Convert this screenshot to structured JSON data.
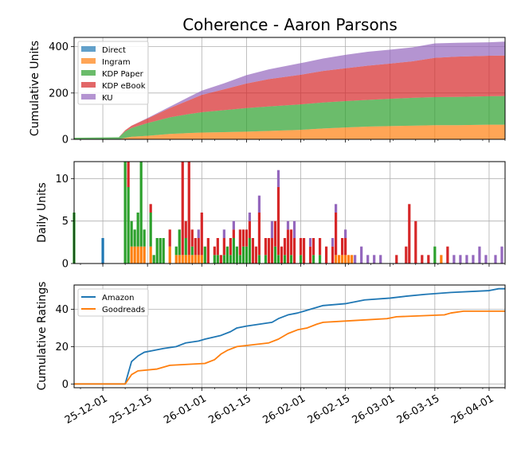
{
  "figure": {
    "title": "Coherence - Aaron Parsons",
    "x_tick_labels": [
      "25-12-01",
      "25-12-15",
      "26-01-01",
      "26-01-15",
      "26-02-01",
      "26-02-15",
      "26-03-01",
      "26-03-15",
      "26-04-01"
    ]
  },
  "colors": {
    "Direct": "#1f77b4",
    "Ingram": "#ff7f0e",
    "KDP Paper": "#2ca02c",
    "KDP eBook": "#d62728",
    "KU": "#9467bd",
    "Amazon": "#1f77b4",
    "Goodreads": "#ff7f0e"
  },
  "chart_data": [
    {
      "type": "area",
      "stacked": true,
      "ylabel": "Cumulative Units",
      "xlim": [
        "2025-11-22",
        "2026-04-06"
      ],
      "ylim": [
        0,
        440
      ],
      "yticks": [
        0,
        200,
        400
      ],
      "grid": true,
      "legend": "upper-left",
      "x": [
        "2025-11-22",
        "2025-12-01",
        "2025-12-06",
        "2025-12-08",
        "2025-12-10",
        "2025-12-15",
        "2025-12-22",
        "2025-12-28",
        "2026-01-01",
        "2026-01-08",
        "2026-01-15",
        "2026-01-22",
        "2026-02-01",
        "2026-02-08",
        "2026-02-15",
        "2026-02-22",
        "2026-03-01",
        "2026-03-08",
        "2026-03-15",
        "2026-03-22",
        "2026-04-01",
        "2026-04-06"
      ],
      "series": [
        {
          "name": "Direct",
          "values": [
            0,
            1,
            1,
            1,
            1,
            1,
            1,
            1,
            1,
            1,
            1,
            1,
            1,
            1,
            1,
            1,
            1,
            1,
            1,
            1,
            1,
            1
          ]
        },
        {
          "name": "Ingram",
          "values": [
            0,
            0,
            0,
            5,
            10,
            14,
            22,
            26,
            28,
            30,
            32,
            35,
            40,
            46,
            50,
            54,
            56,
            58,
            60,
            60,
            62,
            62
          ]
        },
        {
          "name": "KDP Paper",
          "values": [
            7,
            7,
            8,
            28,
            38,
            55,
            72,
            82,
            88,
            95,
            102,
            106,
            110,
            112,
            114,
            115,
            118,
            120,
            121,
            122,
            123,
            124
          ]
        },
        {
          "name": "KDP eBook",
          "values": [
            0,
            0,
            0,
            5,
            10,
            20,
            40,
            60,
            75,
            90,
            106,
            118,
            128,
            136,
            142,
            148,
            152,
            158,
            170,
            174,
            175,
            175
          ]
        },
        {
          "name": "KU",
          "values": [
            0,
            0,
            0,
            0,
            0,
            2,
            6,
            14,
            18,
            26,
            36,
            42,
            50,
            54,
            58,
            60,
            60,
            60,
            62,
            60,
            58,
            60
          ]
        }
      ]
    },
    {
      "type": "bar",
      "stacked": true,
      "ylabel": "Daily Units",
      "ylim": [
        0,
        12
      ],
      "yticks": [
        0,
        5,
        10
      ],
      "grid": true,
      "series_order": [
        "Direct",
        "Ingram",
        "KDP Paper",
        "KDP eBook",
        "KU"
      ],
      "bars": [
        {
          "date": "2025-11-22",
          "KDP Paper": 6
        },
        {
          "date": "2025-12-01",
          "Direct": 3
        },
        {
          "date": "2025-12-08",
          "KDP Paper": 12
        },
        {
          "date": "2025-12-09",
          "KDP Paper": 9,
          "KDP eBook": 3
        },
        {
          "date": "2025-12-10",
          "Ingram": 2,
          "KDP Paper": 3
        },
        {
          "date": "2025-12-11",
          "Ingram": 2,
          "KDP Paper": 2
        },
        {
          "date": "2025-12-12",
          "Ingram": 2,
          "KDP Paper": 4
        },
        {
          "date": "2025-12-13",
          "Ingram": 2,
          "KDP Paper": 10
        },
        {
          "date": "2025-12-14",
          "Ingram": 2,
          "KDP Paper": 2
        },
        {
          "date": "2025-12-16",
          "Ingram": 2,
          "KDP Paper": 4,
          "KDP eBook": 1
        },
        {
          "date": "2025-12-17",
          "KDP Paper": 1
        },
        {
          "date": "2025-12-18",
          "KDP Paper": 3
        },
        {
          "date": "2025-12-19",
          "KDP Paper": 3
        },
        {
          "date": "2025-12-20",
          "KDP Paper": 3
        },
        {
          "date": "2025-12-22",
          "Ingram": 2,
          "KDP eBook": 2
        },
        {
          "date": "2025-12-24",
          "Ingram": 1,
          "KDP Paper": 1
        },
        {
          "date": "2025-12-25",
          "Ingram": 1,
          "KDP Paper": 3
        },
        {
          "date": "2025-12-26",
          "Ingram": 1,
          "KDP eBook": 13
        },
        {
          "date": "2025-12-27",
          "Ingram": 1,
          "KDP Paper": 2,
          "KDP eBook": 2
        },
        {
          "date": "2025-12-28",
          "Ingram": 1,
          "KDP eBook": 11
        },
        {
          "date": "2025-12-29",
          "Ingram": 1,
          "KDP Paper": 1,
          "KDP eBook": 2
        },
        {
          "date": "2025-12-30",
          "Ingram": 1,
          "KDP eBook": 2
        },
        {
          "date": "2025-12-31",
          "Ingram": 1,
          "KDP eBook": 2,
          "KU": 1
        },
        {
          "date": "2026-01-01",
          "Ingram": 1,
          "KDP eBook": 5
        },
        {
          "date": "2026-01-02",
          "KDP Paper": 2
        },
        {
          "date": "2026-01-03",
          "KDP eBook": 3
        },
        {
          "date": "2026-01-05",
          "KDP Paper": 1,
          "KDP eBook": 1
        },
        {
          "date": "2026-01-06",
          "KDP Paper": 1,
          "KDP eBook": 2
        },
        {
          "date": "2026-01-07",
          "KDP eBook": 1
        },
        {
          "date": "2026-01-08",
          "KDP Paper": 1,
          "KDP eBook": 2,
          "KU": 1
        },
        {
          "date": "2026-01-09",
          "KDP Paper": 2
        },
        {
          "date": "2026-01-10",
          "KDP Paper": 1,
          "KDP eBook": 2
        },
        {
          "date": "2026-01-11",
          "KDP Paper": 3,
          "KDP eBook": 1,
          "KU": 1
        },
        {
          "date": "2026-01-12",
          "KDP Paper": 2
        },
        {
          "date": "2026-01-13",
          "KDP Paper": 1,
          "KDP eBook": 3
        },
        {
          "date": "2026-01-14",
          "KDP Paper": 2,
          "KDP eBook": 2
        },
        {
          "date": "2026-01-15",
          "KDP Paper": 2,
          "KDP eBook": 2
        },
        {
          "date": "2026-01-16",
          "KDP Paper": 3,
          "KDP eBook": 2,
          "KU": 1
        },
        {
          "date": "2026-01-17",
          "KDP eBook": 3
        },
        {
          "date": "2026-01-18",
          "KDP eBook": 2
        },
        {
          "date": "2026-01-19",
          "KDP Paper": 1,
          "KDP eBook": 5,
          "KU": 2
        },
        {
          "date": "2026-01-21",
          "KDP Paper": 1,
          "KDP eBook": 2
        },
        {
          "date": "2026-01-22",
          "KDP eBook": 3
        },
        {
          "date": "2026-01-23",
          "KDP eBook": 3,
          "KU": 2
        },
        {
          "date": "2026-01-24",
          "KDP Paper": 2,
          "KDP eBook": 3
        },
        {
          "date": "2026-01-25",
          "KDP Paper": 1,
          "KDP eBook": 8,
          "KU": 2
        },
        {
          "date": "2026-01-26",
          "KDP eBook": 2
        },
        {
          "date": "2026-01-27",
          "KDP Paper": 1,
          "KDP eBook": 2
        },
        {
          "date": "2026-01-28",
          "KDP eBook": 4,
          "KU": 1
        },
        {
          "date": "2026-01-29",
          "KDP Paper": 1,
          "KDP eBook": 3
        },
        {
          "date": "2026-01-30",
          "KDP eBook": 3,
          "KU": 2
        },
        {
          "date": "2026-02-01",
          "KDP Paper": 1,
          "KDP eBook": 2
        },
        {
          "date": "2026-02-02",
          "KDP eBook": 3
        },
        {
          "date": "2026-02-04",
          "KDP eBook": 2,
          "KU": 1
        },
        {
          "date": "2026-02-05",
          "KDP Paper": 1,
          "KDP eBook": 2
        },
        {
          "date": "2026-02-07",
          "KDP Paper": 1,
          "KDP eBook": 2
        },
        {
          "date": "2026-02-09",
          "KDP eBook": 2
        },
        {
          "date": "2026-02-11",
          "KDP eBook": 2,
          "KU": 1
        },
        {
          "date": "2026-02-12",
          "Ingram": 1,
          "KDP eBook": 5,
          "KU": 1
        },
        {
          "date": "2026-02-13",
          "Ingram": 1
        },
        {
          "date": "2026-02-14",
          "Ingram": 1,
          "KDP eBook": 2
        },
        {
          "date": "2026-02-15",
          "Ingram": 1,
          "KDP eBook": 2,
          "KU": 1
        },
        {
          "date": "2026-02-16",
          "Ingram": 1
        },
        {
          "date": "2026-02-17",
          "Ingram": 1
        },
        {
          "date": "2026-02-18",
          "KU": 1
        },
        {
          "date": "2026-02-20",
          "KU": 2
        },
        {
          "date": "2026-02-22",
          "KU": 1
        },
        {
          "date": "2026-02-24",
          "KU": 1
        },
        {
          "date": "2026-02-26",
          "KU": 1
        },
        {
          "date": "2026-03-03",
          "KDP eBook": 1
        },
        {
          "date": "2026-03-06",
          "KDP eBook": 2
        },
        {
          "date": "2026-03-07",
          "KDP eBook": 7
        },
        {
          "date": "2026-03-09",
          "KDP eBook": 5
        },
        {
          "date": "2026-03-11",
          "KDP eBook": 1
        },
        {
          "date": "2026-03-13",
          "KDP eBook": 1
        },
        {
          "date": "2026-03-15",
          "KDP Paper": 2
        },
        {
          "date": "2026-03-17",
          "Ingram": 1
        },
        {
          "date": "2026-03-19",
          "KDP eBook": 2
        },
        {
          "date": "2026-03-21",
          "KU": 1
        },
        {
          "date": "2026-03-23",
          "KU": 1
        },
        {
          "date": "2026-03-25",
          "KU": 1
        },
        {
          "date": "2026-03-27",
          "KU": 1
        },
        {
          "date": "2026-03-29",
          "KU": 2
        },
        {
          "date": "2026-03-31",
          "KU": 1
        },
        {
          "date": "2026-04-03",
          "KU": 1
        },
        {
          "date": "2026-04-05",
          "KU": 2
        }
      ]
    },
    {
      "type": "line",
      "ylabel": "Cumulative Ratings",
      "ylim": [
        -2,
        53
      ],
      "yticks": [
        0,
        20,
        40
      ],
      "grid": true,
      "legend": "upper-left",
      "series": [
        {
          "name": "Amazon",
          "points": [
            [
              "2025-11-22",
              0
            ],
            [
              "2025-12-08",
              0
            ],
            [
              "2025-12-10",
              12
            ],
            [
              "2025-12-12",
              15
            ],
            [
              "2025-12-14",
              17
            ],
            [
              "2025-12-17",
              18
            ],
            [
              "2025-12-20",
              19
            ],
            [
              "2025-12-24",
              20
            ],
            [
              "2025-12-27",
              22
            ],
            [
              "2025-12-31",
              23
            ],
            [
              "2026-01-02",
              24
            ],
            [
              "2026-01-07",
              26
            ],
            [
              "2026-01-10",
              28
            ],
            [
              "2026-01-12",
              30
            ],
            [
              "2026-01-15",
              31
            ],
            [
              "2026-01-19",
              32
            ],
            [
              "2026-01-23",
              33
            ],
            [
              "2026-01-25",
              35
            ],
            [
              "2026-01-28",
              37
            ],
            [
              "2026-01-31",
              38
            ],
            [
              "2026-02-02",
              39
            ],
            [
              "2026-02-06",
              41
            ],
            [
              "2026-02-08",
              42
            ],
            [
              "2026-02-15",
              43
            ],
            [
              "2026-02-18",
              44
            ],
            [
              "2026-02-21",
              45
            ],
            [
              "2026-03-01",
              46
            ],
            [
              "2026-03-06",
              47
            ],
            [
              "2026-03-12",
              48
            ],
            [
              "2026-03-20",
              49
            ],
            [
              "2026-04-01",
              50
            ],
            [
              "2026-04-04",
              51
            ],
            [
              "2026-04-06",
              51
            ]
          ]
        },
        {
          "name": "Goodreads",
          "points": [
            [
              "2025-11-22",
              0
            ],
            [
              "2025-12-08",
              0
            ],
            [
              "2025-12-10",
              5
            ],
            [
              "2025-12-12",
              7
            ],
            [
              "2025-12-18",
              8
            ],
            [
              "2025-12-22",
              10
            ],
            [
              "2026-01-02",
              11
            ],
            [
              "2026-01-05",
              13
            ],
            [
              "2026-01-07",
              16
            ],
            [
              "2026-01-09",
              18
            ],
            [
              "2026-01-12",
              20
            ],
            [
              "2026-01-22",
              22
            ],
            [
              "2026-01-25",
              24
            ],
            [
              "2026-01-28",
              27
            ],
            [
              "2026-01-31",
              29
            ],
            [
              "2026-02-03",
              30
            ],
            [
              "2026-02-06",
              32
            ],
            [
              "2026-02-08",
              33
            ],
            [
              "2026-02-18",
              34
            ],
            [
              "2026-02-28",
              35
            ],
            [
              "2026-03-03",
              36
            ],
            [
              "2026-03-18",
              37
            ],
            [
              "2026-03-20",
              38
            ],
            [
              "2026-03-24",
              39
            ],
            [
              "2026-04-06",
              39
            ]
          ]
        }
      ]
    }
  ]
}
